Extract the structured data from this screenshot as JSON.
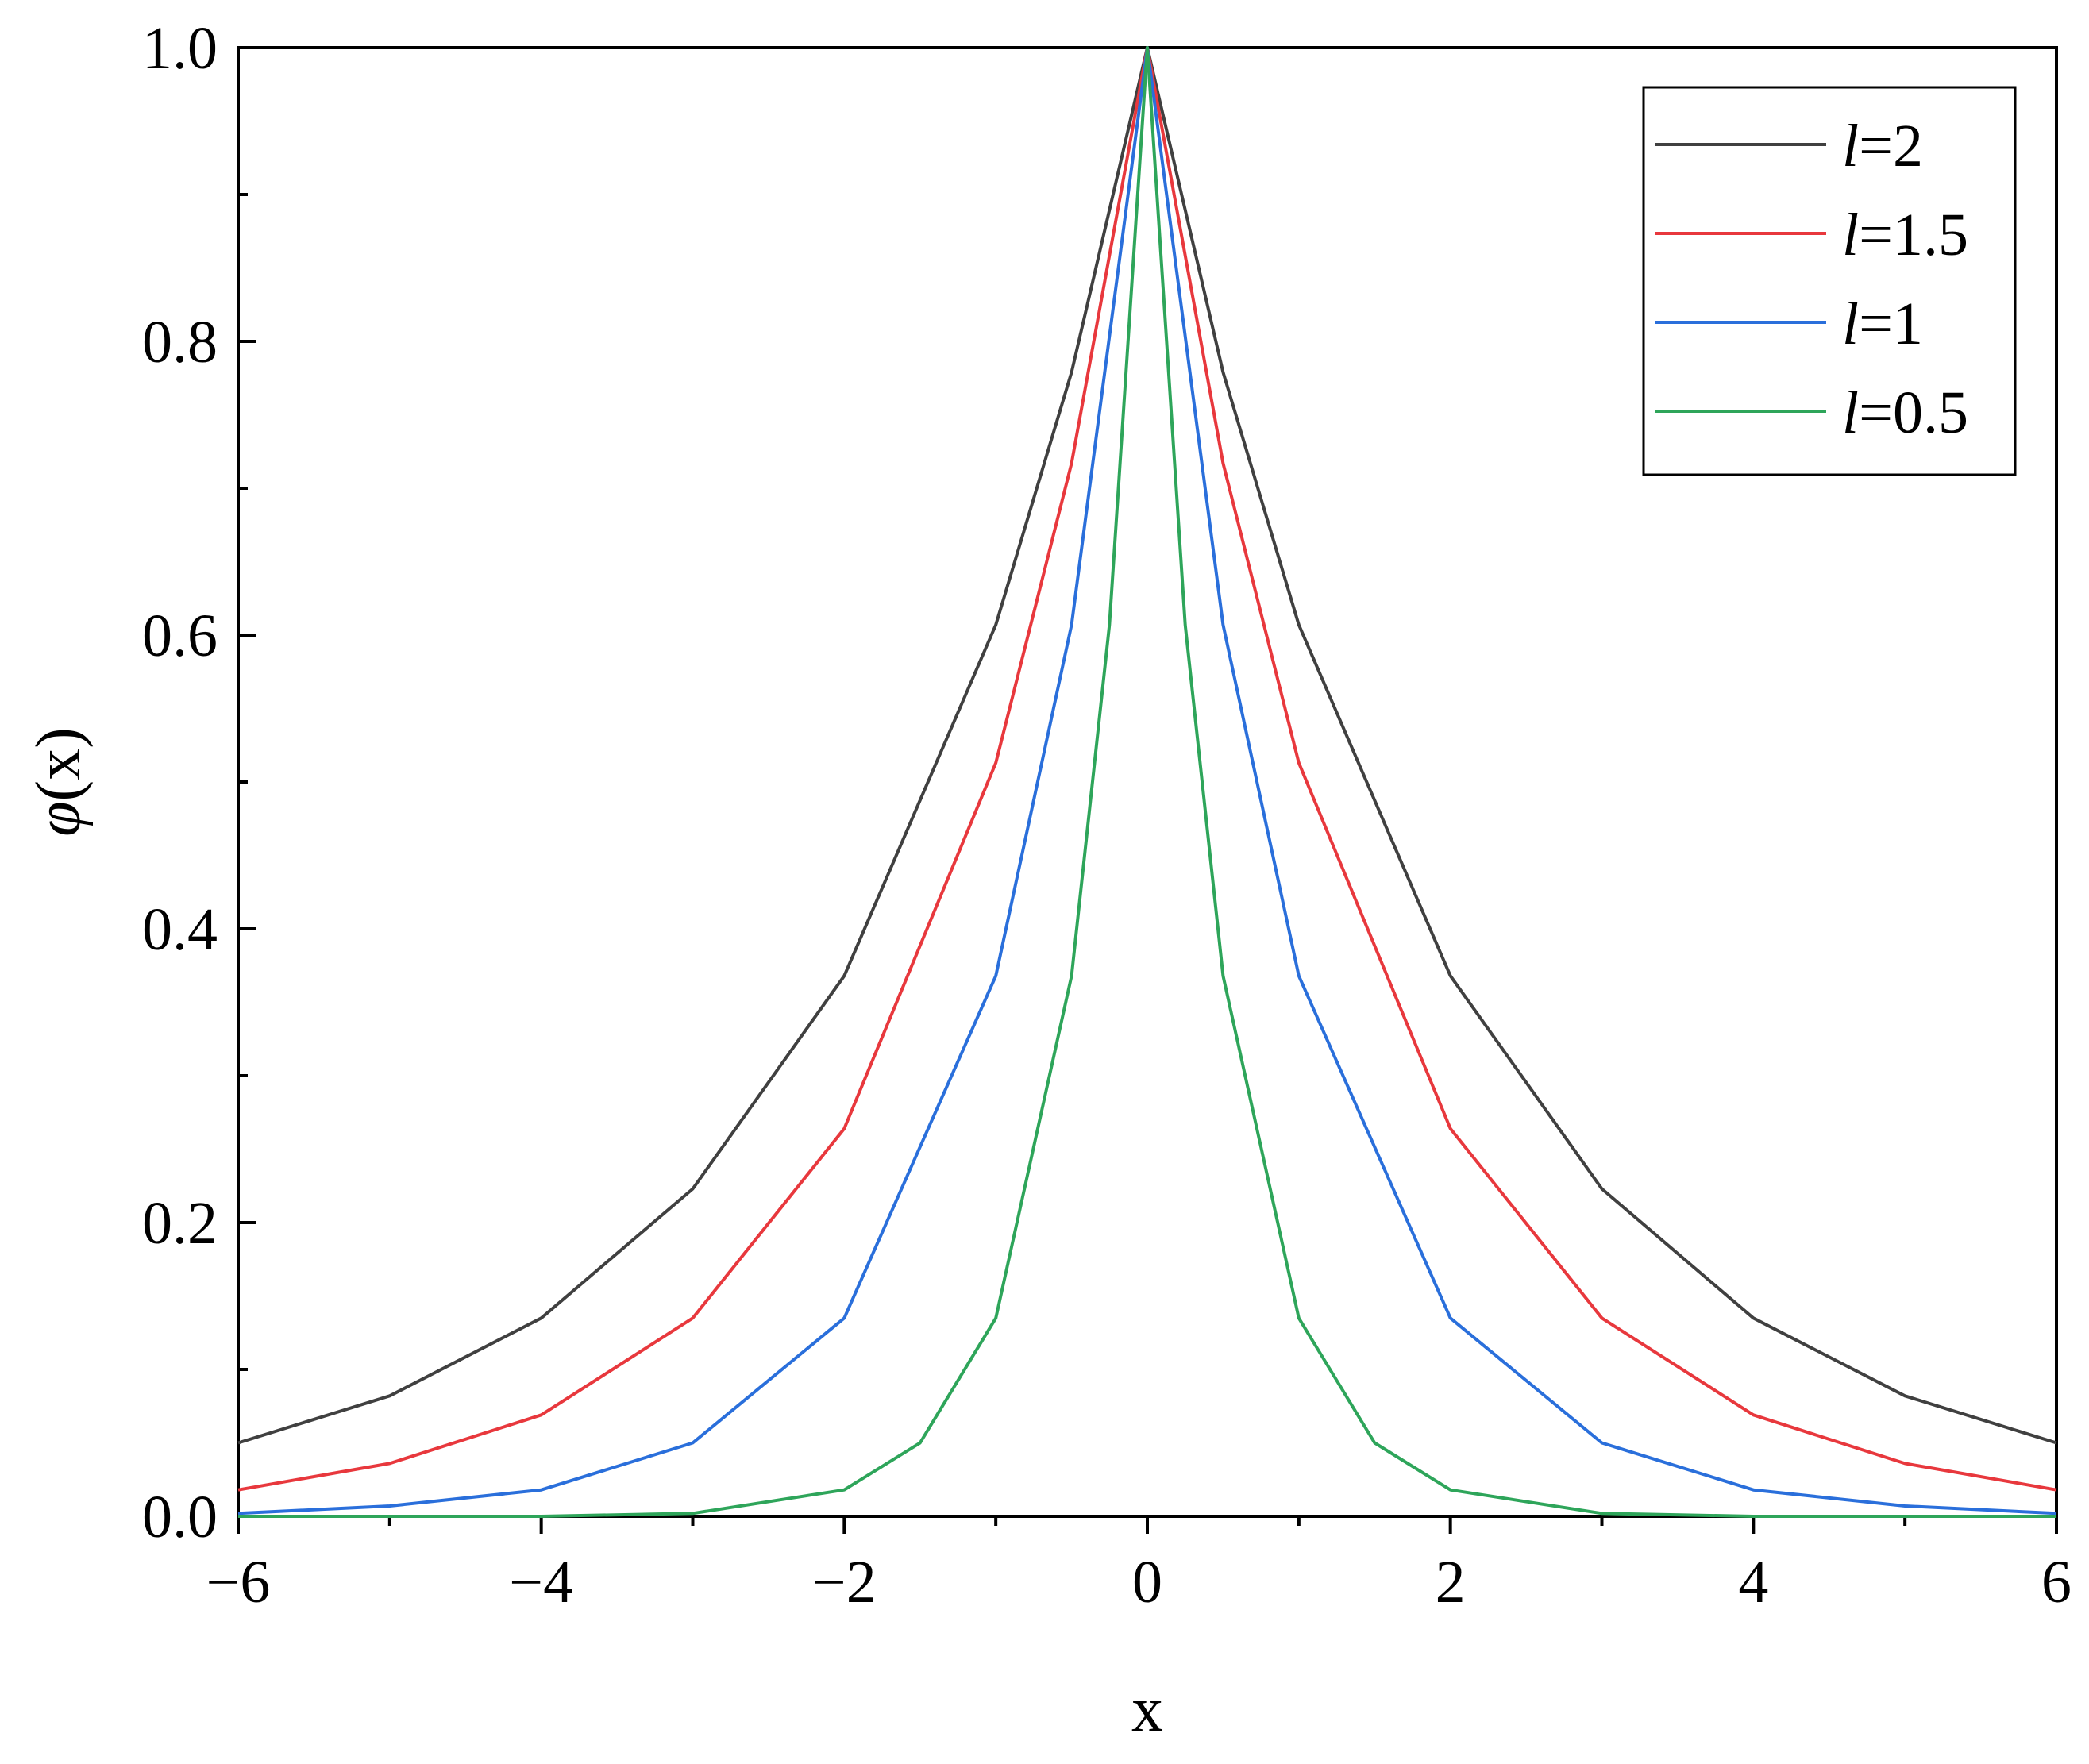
{
  "chart_data": {
    "type": "line",
    "xlabel": "x",
    "ylabel": "φ(x)",
    "xlim": [
      -6,
      6
    ],
    "ylim": [
      0,
      1.0
    ],
    "x_ticks": [
      -6,
      -4,
      -2,
      0,
      2,
      4,
      6
    ],
    "x_tick_labels": [
      "−6",
      "−4",
      "−2",
      "0",
      "2",
      "4",
      "6"
    ],
    "y_ticks": [
      0.0,
      0.2,
      0.4,
      0.6,
      0.8,
      1.0
    ],
    "y_tick_labels": [
      "0.0",
      "0.2",
      "0.4",
      "0.6",
      "0.8",
      "1.0"
    ],
    "grid": false,
    "legend_position": "top-right",
    "series": [
      {
        "name": "l=2",
        "legend_var": "l",
        "legend_value": "=2",
        "color": "#404040",
        "x": [
          -6,
          -5,
          -4,
          -3,
          -2,
          -1,
          -0.5,
          0,
          0.5,
          1,
          2,
          3,
          4,
          5,
          6
        ],
        "y": [
          0.05,
          0.082,
          0.135,
          0.223,
          0.368,
          0.607,
          0.779,
          1.0,
          0.779,
          0.607,
          0.368,
          0.223,
          0.135,
          0.082,
          0.05
        ]
      },
      {
        "name": "l=1.5",
        "legend_var": "l",
        "legend_value": "=1.5",
        "color": "#e8383d",
        "x": [
          -6,
          -5,
          -4,
          -3,
          -2,
          -1,
          -0.5,
          0,
          0.5,
          1,
          2,
          3,
          4,
          5,
          6
        ],
        "y": [
          0.018,
          0.036,
          0.069,
          0.135,
          0.264,
          0.513,
          0.717,
          1.0,
          0.717,
          0.513,
          0.264,
          0.135,
          0.069,
          0.036,
          0.018
        ]
      },
      {
        "name": "l=1",
        "legend_var": "l",
        "legend_value": "=1",
        "color": "#2a6fdb",
        "x": [
          -6,
          -5,
          -4,
          -3,
          -2,
          -1,
          -0.5,
          0,
          0.5,
          1,
          2,
          3,
          4,
          5,
          6
        ],
        "y": [
          0.002,
          0.007,
          0.018,
          0.05,
          0.135,
          0.368,
          0.607,
          1.0,
          0.607,
          0.368,
          0.135,
          0.05,
          0.018,
          0.007,
          0.002
        ]
      },
      {
        "name": "l=0.5",
        "legend_var": "l",
        "legend_value": "=0.5",
        "color": "#2ea55a",
        "x": [
          -6,
          -4,
          -3,
          -2,
          -1.5,
          -1,
          -0.5,
          -0.25,
          0,
          0.25,
          0.5,
          1,
          1.5,
          2,
          3,
          4,
          6
        ],
        "y": [
          0.0,
          0.0,
          0.002,
          0.018,
          0.05,
          0.135,
          0.368,
          0.607,
          1.0,
          0.607,
          0.368,
          0.135,
          0.05,
          0.018,
          0.002,
          0.0,
          0.0
        ]
      }
    ]
  }
}
